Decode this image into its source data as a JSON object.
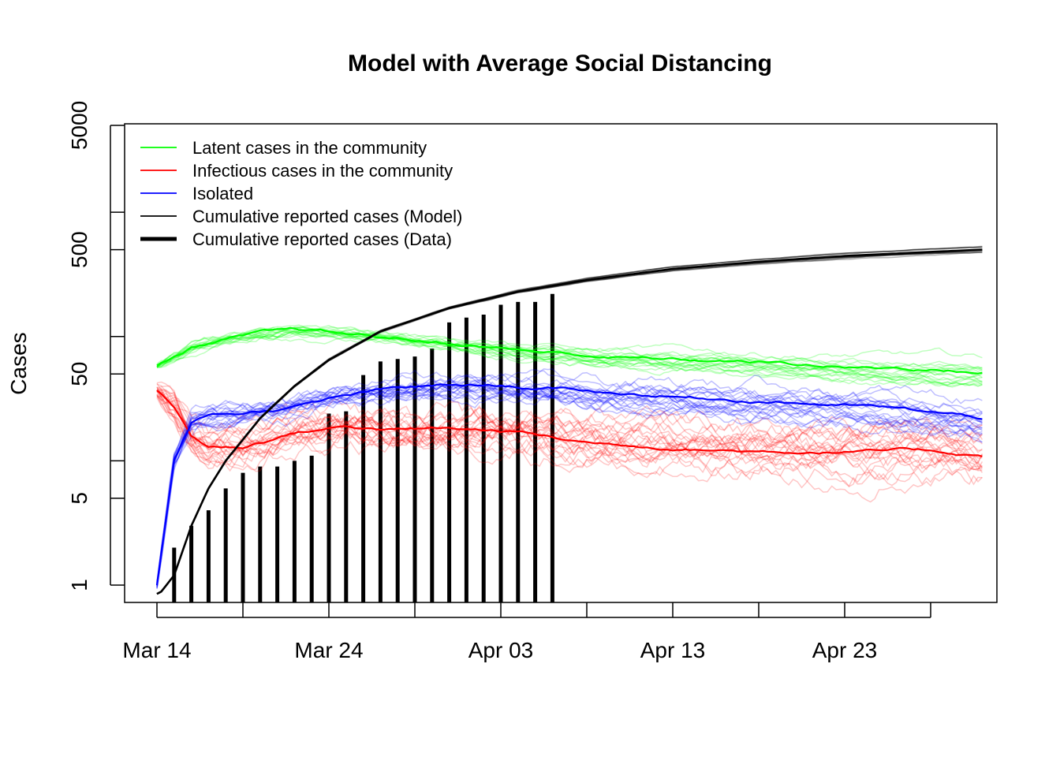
{
  "chart_data": {
    "type": "line",
    "title": "Model with Average Social Distancing",
    "xlabel": "",
    "ylabel": "Cases",
    "y_scale": "log",
    "ylim": [
      0.8,
      5000
    ],
    "xlim": [
      "2020-03-14",
      "2020-05-01"
    ],
    "y_ticks": [
      1,
      5,
      50,
      500,
      5000
    ],
    "y_minor_ticks": [
      10,
      100,
      1000
    ],
    "x_ticks": [
      "Mar 14",
      "Mar 19",
      "Mar 24",
      "Mar 29",
      "Apr 03",
      "Apr 08",
      "Apr 13",
      "Apr 18",
      "Apr 23",
      "Apr 28"
    ],
    "x_tick_labels": [
      "Mar 14",
      "Mar 24",
      "Apr 03",
      "Apr 13",
      "Apr 23"
    ],
    "legend_position": "top-left",
    "grid": false,
    "colors": {
      "latent": "#00ff00",
      "infectious": "#ff0000",
      "isolated": "#0000ff",
      "model": "#000000",
      "data": "#000000"
    },
    "legend": [
      {
        "label": "Latent cases in the community",
        "color": "#00ff00",
        "width": "thin"
      },
      {
        "label": "Infectious cases in the community",
        "color": "#ff0000",
        "width": "thin"
      },
      {
        "label": "Isolated",
        "color": "#0000ff",
        "width": "thin"
      },
      {
        "label": "Cumulative reported cases (Model)",
        "color": "#000000",
        "width": "thin"
      },
      {
        "label": "Cumulative reported cases (Data)",
        "color": "#000000",
        "width": "thick"
      }
    ],
    "series": [
      {
        "name": "Latent cases in the community",
        "x": [
          "2020-03-14",
          "2020-03-16",
          "2020-03-18",
          "2020-03-20",
          "2020-03-22",
          "2020-03-24",
          "2020-03-27",
          "2020-03-31",
          "2020-04-04",
          "2020-04-08",
          "2020-04-13",
          "2020-04-18",
          "2020-04-23",
          "2020-04-28",
          "2020-05-01"
        ],
        "values": [
          58,
          82,
          95,
          105,
          110,
          105,
          98,
          88,
          78,
          70,
          65,
          62,
          57,
          55,
          52
        ]
      },
      {
        "name": "Infectious cases in the community",
        "x": [
          "2020-03-14",
          "2020-03-15",
          "2020-03-16",
          "2020-03-17",
          "2020-03-19",
          "2020-03-22",
          "2020-03-25",
          "2020-03-28",
          "2020-03-31",
          "2020-04-04",
          "2020-04-08",
          "2020-04-13",
          "2020-04-18",
          "2020-04-23",
          "2020-04-28",
          "2020-05-01"
        ],
        "values": [
          37,
          27,
          16,
          13,
          13,
          17,
          19,
          18,
          18,
          17,
          14,
          13,
          12,
          12,
          12,
          11
        ]
      },
      {
        "name": "Isolated",
        "x": [
          "2020-03-14",
          "2020-03-15",
          "2020-03-16",
          "2020-03-17",
          "2020-03-19",
          "2020-03-22",
          "2020-03-25",
          "2020-03-28",
          "2020-03-31",
          "2020-04-03",
          "2020-04-06",
          "2020-04-10",
          "2020-04-15",
          "2020-04-20",
          "2020-04-25",
          "2020-05-01"
        ],
        "values": [
          1,
          10,
          20,
          23,
          24,
          27,
          33,
          38,
          40,
          40,
          38,
          35,
          32,
          30,
          27,
          22
        ]
      },
      {
        "name": "Cumulative reported cases (Model)",
        "x": [
          "2020-03-14",
          "2020-03-15",
          "2020-03-16",
          "2020-03-17",
          "2020-03-18",
          "2020-03-20",
          "2020-03-22",
          "2020-03-24",
          "2020-03-27",
          "2020-03-31",
          "2020-04-04",
          "2020-04-08",
          "2020-04-13",
          "2020-04-18",
          "2020-04-23",
          "2020-04-28",
          "2020-05-01"
        ],
        "values": [
          0.8,
          1.2,
          3,
          6,
          10,
          22,
          40,
          65,
          110,
          170,
          230,
          285,
          350,
          400,
          445,
          480,
          500
        ]
      },
      {
        "name": "Cumulative reported cases (Data)",
        "x": [
          "2020-03-15",
          "2020-03-16",
          "2020-03-17",
          "2020-03-18",
          "2020-03-19",
          "2020-03-20",
          "2020-03-21",
          "2020-03-22",
          "2020-03-23",
          "2020-03-24",
          "2020-03-25",
          "2020-03-26",
          "2020-03-27",
          "2020-03-28",
          "2020-03-29",
          "2020-03-30",
          "2020-03-31",
          "2020-04-01",
          "2020-04-02",
          "2020-04-03",
          "2020-04-04",
          "2020-04-05",
          "2020-04-06"
        ],
        "values": [
          2,
          3,
          4,
          6,
          8,
          9,
          9,
          10,
          11,
          24,
          25,
          49,
          63,
          66,
          69,
          80,
          130,
          142,
          150,
          180,
          190,
          190,
          220
        ]
      }
    ]
  }
}
